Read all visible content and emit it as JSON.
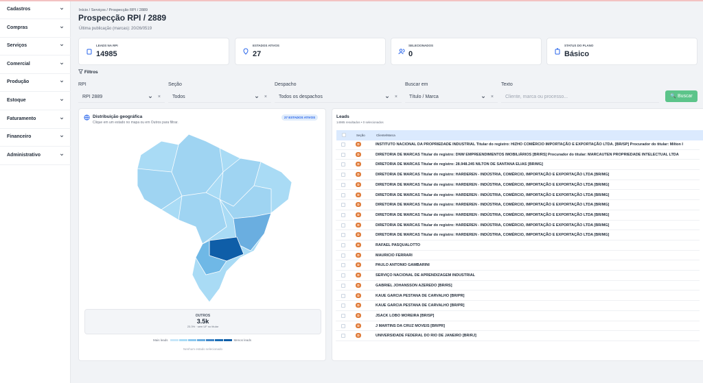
{
  "sidebar": [
    "Cadastros",
    "Compras",
    "Serviços",
    "Comercial",
    "Produção",
    "Estoque",
    "Faturamento",
    "Financeiro",
    "Administrativo"
  ],
  "header": {
    "breadcrumb": [
      "Início",
      "Serviços",
      "Prospecção RPI / 2889"
    ],
    "title": "Prospecção RPI / 2889",
    "subtitle": "Última publicação (marcas): 20/26/0519"
  },
  "stats": [
    {
      "label": "LEADS NA RPI",
      "value": "14985"
    },
    {
      "label": "ESTADOS ATIVOS",
      "value": "27"
    },
    {
      "label": "SELECIONADOS",
      "value": "0"
    },
    {
      "label": "STATUS DO PLANO",
      "value": "Básico"
    }
  ],
  "filters": {
    "title": "Filtros",
    "fields": [
      {
        "label": "RPI",
        "value": "RPI 2889"
      },
      {
        "label": "Seção",
        "value": "Todos"
      },
      {
        "label": "Despacho",
        "value": "Todos os despachos"
      },
      {
        "label": "Buscar em",
        "value": "Título / Marca"
      },
      {
        "label": "Texto",
        "placeholder": "Cliente, marca ou processo..."
      }
    ],
    "button": "Buscar"
  },
  "map": {
    "title": "Distribuição geográfica",
    "hint": "Clique em um estado no mapa ou em Outros para filtrar.",
    "badge": "27 ESTADOS ATIVOS",
    "others": {
      "label": "OUTROS",
      "value": "3.5k",
      "note": "23.3% · sem UF no titular"
    },
    "legend": [
      "Mais leads",
      "Menos leads"
    ],
    "selection": "Nenhum estado selecionado"
  },
  "leads": {
    "title": "Leads",
    "summary": "14985 resultados • 0 selecionados",
    "columns": [
      "Seção",
      "Cliente/Marca"
    ],
    "rows": [
      [
        "D",
        "INSTITUTO NACIONAL DA PROPRIEDADE INDUSTRIAL Titular do registro: HIZHO COMÉRCIO IMPORTAÇÃO E EXPORTAÇÃO LTDA. [BR/SP] Procurador do titular: Milton I"
      ],
      [
        "D",
        "DIRETORIA DE MARCAS Titular do registro: DNW EMPREENDIMENTOS IMOBILIÁRIOS [BR/RS] Procurador do titular: MARCAUTEN PROPRIEDADE INTELECTUAL LTDA"
      ],
      [
        "D",
        "DIRETORIA DE MARCAS Titular do registro: 28.948.245 NILTON DE SANTANA ELIAS [BR/MG]"
      ],
      [
        "D",
        "DIRETORIA DE MARCAS Titular do registro: HARDEREN - INDÚSTRIA, COMÉRCIO, IMPORTAÇÃO E EXPORTAÇÃO LTDA [BR/MG]"
      ],
      [
        "D",
        "DIRETORIA DE MARCAS Titular do registro: HARDEREN - INDÚSTRIA, COMÉRCIO, IMPORTAÇÃO E EXPORTAÇÃO LTDA [BR/MG]"
      ],
      [
        "D",
        "DIRETORIA DE MARCAS Titular do registro: HARDEREN - INDÚSTRIA, COMÉRCIO, IMPORTAÇÃO E EXPORTAÇÃO LTDA [BR/MG]"
      ],
      [
        "D",
        "DIRETORIA DE MARCAS Titular do registro: HARDEREN - INDÚSTRIA, COMÉRCIO, IMPORTAÇÃO E EXPORTAÇÃO LTDA [BR/MG]"
      ],
      [
        "D",
        "DIRETORIA DE MARCAS Titular do registro: HARDEREN - INDÚSTRIA, COMÉRCIO, IMPORTAÇÃO E EXPORTAÇÃO LTDA [BR/MG]"
      ],
      [
        "D",
        "DIRETORIA DE MARCAS Titular do registro: HARDEREN - INDÚSTRIA, COMÉRCIO, IMPORTAÇÃO E EXPORTAÇÃO LTDA [BR/MG]"
      ],
      [
        "D",
        "DIRETORIA DE MARCAS Titular do registro: HARDEREN - INDÚSTRIA, COMÉRCIO, IMPORTAÇÃO E EXPORTAÇÃO LTDA [BR/MG]"
      ],
      [
        "D",
        "RAFAEL PASQUALOTTO"
      ],
      [
        "D",
        "MAURICIO FERRARI"
      ],
      [
        "D",
        "PAULO ANTONIO GAMBARINI"
      ],
      [
        "D",
        "SERVIÇO NACIONAL DE APRENDIZAGEM INDUSTRIAL"
      ],
      [
        "D",
        "GABRIEL JOHANSSON AZEREDO [BR/RS]"
      ],
      [
        "D",
        "KAUE GARCIA PESTANA DE CARVALHO [BR/PR]"
      ],
      [
        "D",
        "KAUE GARCIA PESTANA DE CARVALHO [BR/PR]"
      ],
      [
        "D",
        "JSACK LOBO MOREIRA [BR/SP]"
      ],
      [
        "D",
        "J MARTINS DA CRUZ MOVEIS [BR/PR]"
      ],
      [
        "D",
        "UNIVERSIDADE FEDERAL DO RIO DE JANEIRO [BR/RJ]"
      ]
    ]
  }
}
